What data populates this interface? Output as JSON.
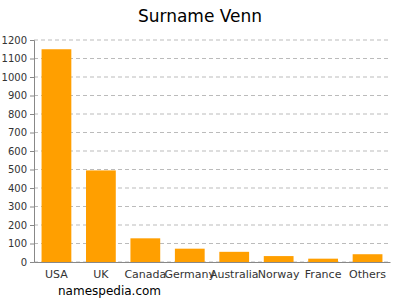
{
  "chart_data": {
    "type": "bar",
    "title": "Surname Venn",
    "categories": [
      "USA",
      "UK",
      "Canada",
      "Germany",
      "Australia",
      "Norway",
      "France",
      "Others"
    ],
    "values": [
      1150,
      495,
      128,
      72,
      55,
      32,
      18,
      42
    ],
    "color": "#ff9f00",
    "ylim": [
      0,
      1200
    ],
    "yticks": [
      0,
      100,
      200,
      300,
      400,
      500,
      600,
      700,
      800,
      900,
      1000,
      1100,
      1200
    ],
    "grid": true,
    "annotations": [
      "namespedia.com"
    ]
  }
}
